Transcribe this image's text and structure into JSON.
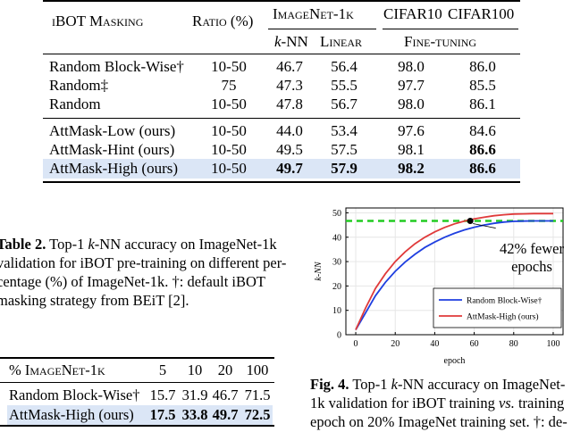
{
  "table1": {
    "headers": {
      "masking": "iBOT Masking",
      "ratio": "Ratio (%)",
      "imagenet": "ImageNet-1k",
      "cifar10": "CIFAR10",
      "cifar100": "CIFAR100",
      "knn": "k-NN",
      "linear": "Linear",
      "finetuning": "Fine-tuning"
    },
    "rows": [
      {
        "method": "Random Block-Wise†",
        "ratio": "10-50",
        "knn": "46.7",
        "linear": "56.4",
        "c10": "98.0",
        "c100": "86.0"
      },
      {
        "method": "Random‡",
        "ratio": "75",
        "knn": "47.3",
        "linear": "55.5",
        "c10": "97.7",
        "c100": "85.5"
      },
      {
        "method": "Random",
        "ratio": "10-50",
        "knn": "47.8",
        "linear": "56.7",
        "c10": "98.0",
        "c100": "86.1"
      },
      {
        "method": "AttMask-Low (ours)",
        "ratio": "10-50",
        "knn": "44.0",
        "linear": "53.4",
        "c10": "97.6",
        "c100": "84.6"
      },
      {
        "method": "AttMask-Hint (ours)",
        "ratio": "10-50",
        "knn": "49.5",
        "linear": "57.5",
        "c10": "98.1",
        "c100": "86.6"
      },
      {
        "method": "AttMask-High (ours)",
        "ratio": "10-50",
        "knn": "49.7",
        "linear": "57.9",
        "c10": "98.2",
        "c100": "86.6"
      }
    ]
  },
  "caption2": {
    "l1": "Table 2. Top-1 k-NN accuracy on ImageNet-1k",
    "l2": "validation for iBOT pre-training on different per-",
    "l3": "centage (%) of ImageNet-1k. †: default iBOT",
    "l4": "masking strategy from BEiT [2]."
  },
  "table2": {
    "header": [
      "% ImageNet-1k",
      "5",
      "10",
      "20",
      "100"
    ],
    "rows": [
      [
        "Random Block-Wise†",
        "15.7",
        "31.9",
        "46.7",
        "71.5"
      ],
      [
        "AttMask-High (ours)",
        "17.5",
        "33.8",
        "49.7",
        "72.5"
      ]
    ]
  },
  "caption4": {
    "l1": "Fig. 4. Top-1 k-NN accuracy on ImageNet-",
    "l2": "1k validation for iBOT training vs. training",
    "l3": "epoch on 20% ImageNet training set. †: de-"
  },
  "colors": {
    "blue": "#1f3fe0",
    "red": "#e03a3a",
    "green": "#22cc22",
    "highlight": "#dbe6f6"
  },
  "chart_data": {
    "type": "line",
    "xlabel": "epoch",
    "ylabel": "k-NN",
    "xlim": [
      -5,
      105
    ],
    "ylim": [
      0,
      52
    ],
    "xticks": [
      "0",
      "20",
      "40",
      "60",
      "80",
      "100"
    ],
    "yticks": [
      "0",
      "10",
      "20",
      "30",
      "40",
      "50"
    ],
    "annotation": "42% fewer epochs",
    "reference_y": 46.7,
    "marker": {
      "x": 58,
      "y": 46.7
    },
    "legend": {
      "placement": "bottom-right"
    },
    "series": [
      {
        "name": "Random Block-Wise†",
        "color": "#1f3fe0",
        "x": [
          0,
          5,
          10,
          15,
          20,
          25,
          30,
          35,
          40,
          45,
          50,
          55,
          60,
          65,
          70,
          75,
          80,
          85,
          90,
          95,
          100
        ],
        "y": [
          2,
          9,
          16,
          21.5,
          26,
          29.8,
          33,
          35.8,
          38,
          40,
          41.6,
          43,
          44.1,
          45,
          45.7,
          46.2,
          46.5,
          46.6,
          46.7,
          46.7,
          46.7
        ]
      },
      {
        "name": "AttMask-High (ours)",
        "color": "#e03a3a",
        "x": [
          0,
          5,
          10,
          15,
          20,
          25,
          30,
          35,
          40,
          45,
          50,
          55,
          60,
          65,
          70,
          75,
          80,
          85,
          90,
          95,
          100
        ],
        "y": [
          2,
          11,
          19,
          25,
          30,
          34,
          37.3,
          40,
          42.2,
          44,
          45.5,
          46.6,
          47.5,
          48.2,
          48.8,
          49.2,
          49.5,
          49.6,
          49.7,
          49.7,
          49.7
        ]
      }
    ]
  }
}
